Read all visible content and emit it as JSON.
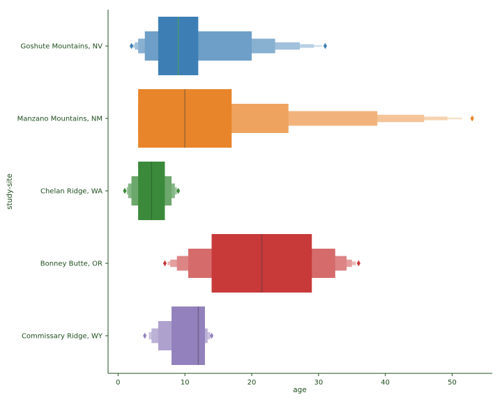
{
  "chart_data": {
    "type": "boxen",
    "orientation": "horizontal",
    "title": "",
    "xlabel": "age",
    "ylabel": "study-site",
    "xlim": [
      -1.5,
      56
    ],
    "xticks": [
      0,
      10,
      20,
      30,
      40,
      50
    ],
    "grid": false,
    "legend": "none",
    "axis_color": "#1e4d1e",
    "label_color": "#1e4d1e",
    "categories": [
      "Goshute Mountains, NV",
      "Manzano Mountains, NM",
      "Chelan Ridge, WA",
      "Bonney Butte, OR",
      "Commissary Ridge, WY"
    ],
    "series": [
      {
        "color": "#3d7fb5",
        "median": 9,
        "boxes": [
          [
            6,
            12
          ],
          [
            4,
            20
          ],
          [
            3,
            23.5
          ],
          [
            2.5,
            27.2
          ],
          [
            2.2,
            29.3
          ],
          [
            2.1,
            30.5
          ]
        ],
        "outliers": [
          2,
          31
        ]
      },
      {
        "color": "#e8852a",
        "median": 10,
        "boxes": [
          [
            3,
            17
          ],
          [
            3,
            25.5
          ],
          [
            3,
            38.8
          ],
          [
            3,
            45.8
          ],
          [
            3,
            49.3
          ],
          [
            3,
            51.5
          ]
        ],
        "outliers": [
          53
        ]
      },
      {
        "color": "#3b8a3b",
        "median": 5,
        "boxes": [
          [
            3,
            7
          ],
          [
            2,
            8
          ],
          [
            1.5,
            8.5
          ],
          [
            1.3,
            8.8
          ]
        ],
        "outliers": [
          1,
          9
        ]
      },
      {
        "color": "#c8393a",
        "median": 21.5,
        "boxes": [
          [
            14,
            29
          ],
          [
            10.5,
            32.5
          ],
          [
            8.8,
            34.2
          ],
          [
            7.8,
            35
          ],
          [
            7.4,
            35.6
          ]
        ],
        "outliers": [
          7,
          36
        ]
      },
      {
        "color": "#9381bd",
        "median": 12,
        "boxes": [
          [
            8,
            13
          ],
          [
            6,
            13
          ],
          [
            5,
            13.4
          ],
          [
            4.6,
            13.8
          ]
        ],
        "outliers": [
          4,
          14
        ]
      }
    ]
  }
}
